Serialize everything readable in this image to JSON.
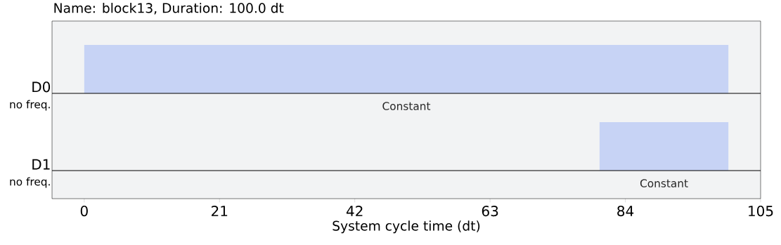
{
  "chart_data": {
    "type": "bar",
    "orientation": "horizontal",
    "title": "Name: block13, Duration: 100.0 dt",
    "xlabel": "System cycle time (dt)",
    "categories": [
      "D0",
      "D1"
    ],
    "base": [
      0,
      80
    ],
    "values": [
      100,
      20
    ],
    "color": "#c7d3f5",
    "xlim": [
      -5,
      105
    ],
    "xticks": [
      0,
      21,
      42,
      63,
      84,
      105
    ],
    "ref_lines": [
      {
        "axis": "y",
        "value": "D0",
        "color": "#000000"
      },
      {
        "axis": "y",
        "value": "D1",
        "color": "#000000"
      }
    ],
    "annotations": [
      "no freq.",
      "no freq.",
      "Constant",
      "Constant"
    ]
  }
}
